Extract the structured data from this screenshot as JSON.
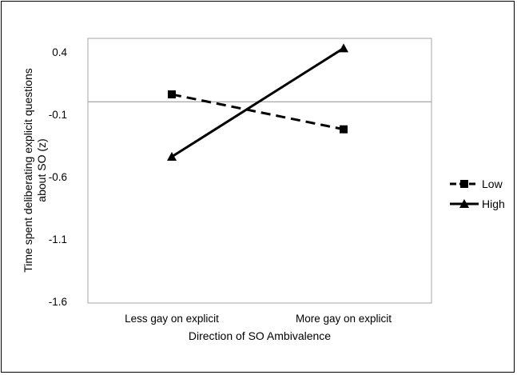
{
  "chart_data": {
    "type": "line",
    "title": "",
    "xlabel": "Direction of SO Ambivalence",
    "ylabel_lines": [
      "Time spent deliberating explicit questions",
      "about SO (z)"
    ],
    "categories": [
      "Less gay on explicit",
      "More gay on explicit"
    ],
    "ylim": [
      -1.6,
      0.5
    ],
    "yticks": [
      "0.4",
      "-0.1",
      "-0.6",
      "-1.1",
      "-1.6"
    ],
    "ytick_values": [
      0.4,
      -0.1,
      -0.6,
      -1.1,
      -1.6
    ],
    "reference_line": 0,
    "grid": false,
    "legend_position": "right",
    "series": [
      {
        "name": "Low",
        "values": [
          0.06,
          -0.22
        ],
        "line_style": "dashed",
        "marker": "square",
        "color": "#000000"
      },
      {
        "name": "High",
        "values": [
          -0.44,
          0.43
        ],
        "line_style": "solid",
        "marker": "triangle",
        "color": "#000000"
      }
    ]
  }
}
